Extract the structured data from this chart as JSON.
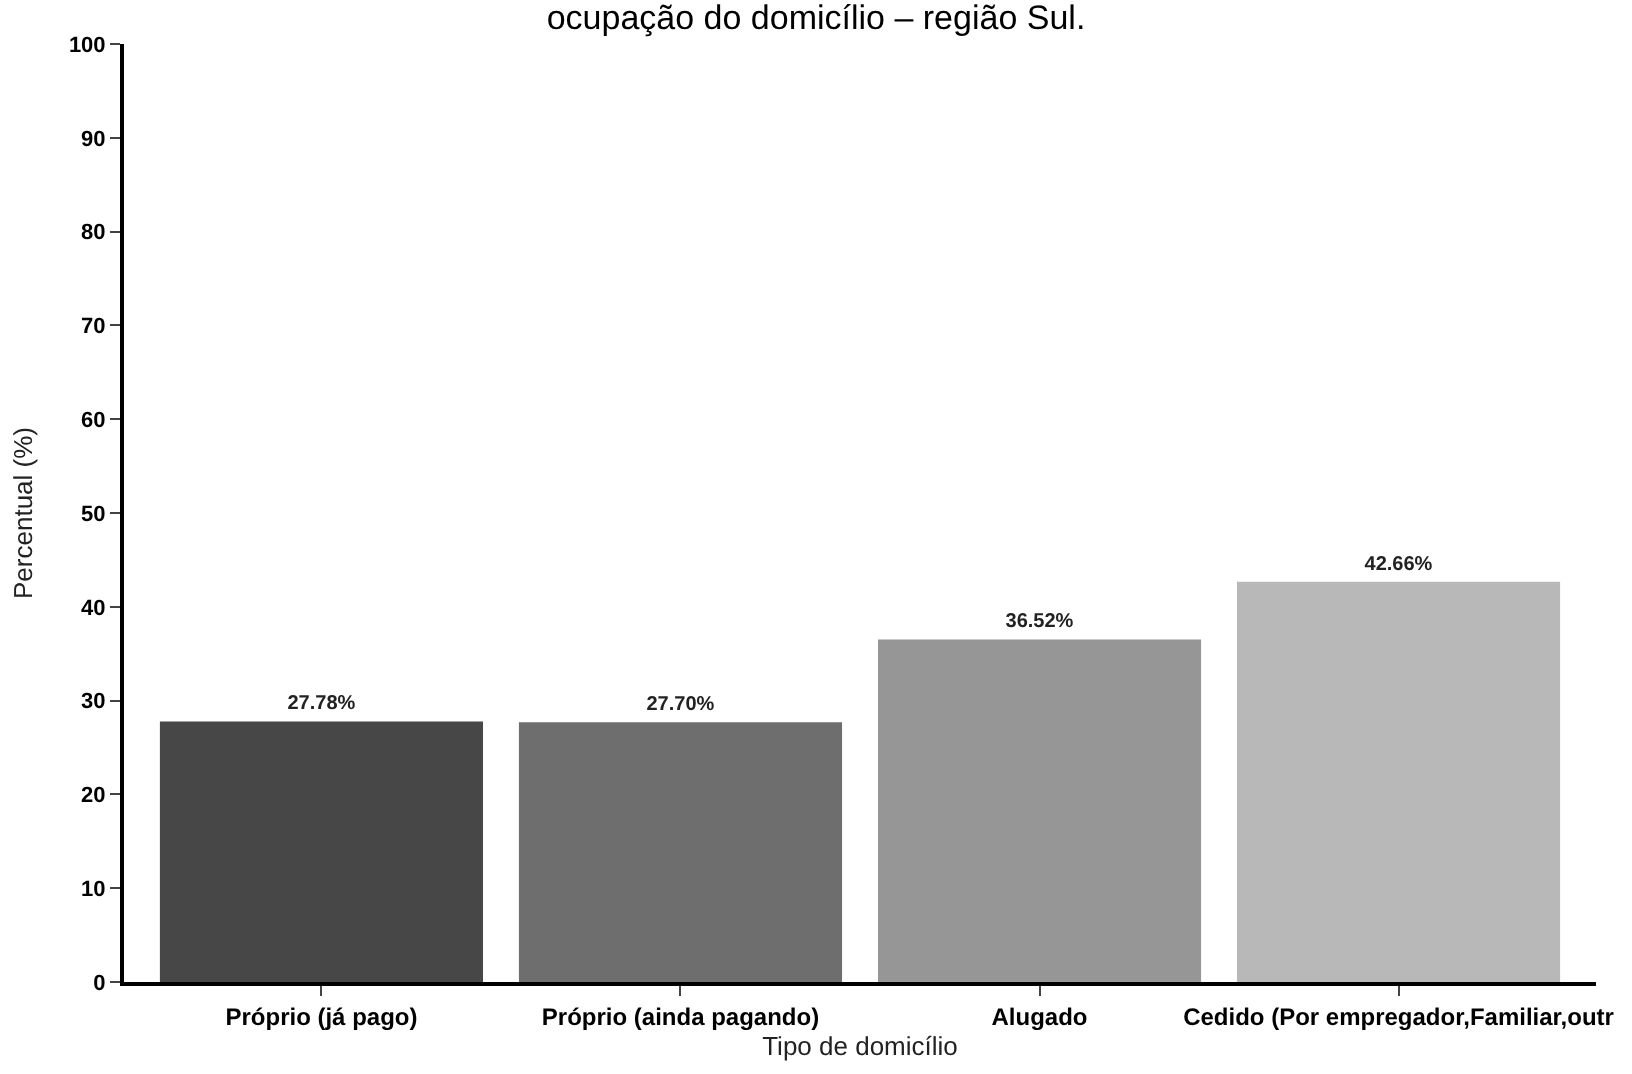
{
  "chart_data": {
    "type": "bar",
    "title": "ocupação do domicílio – região Sul.",
    "xlabel": "Tipo de domicílio",
    "ylabel": "Percentual (%)",
    "categories": [
      "Próprio (já pago)",
      "Próprio (ainda pagando)",
      "Alugado",
      "Cedido (Por empregador,Familiar,outr"
    ],
    "values": [
      27.78,
      27.7,
      36.52,
      42.66
    ],
    "colors": [
      "#474747",
      "#6e6e6e",
      "#969696",
      "#b8b8b8"
    ],
    "value_labels": [
      "27.78%",
      "27.70%",
      "36.52%",
      "42.66%"
    ],
    "ylim": [
      0,
      100
    ],
    "yticks": [
      0,
      10,
      20,
      30,
      40,
      50,
      60,
      70,
      80,
      90,
      100
    ]
  }
}
